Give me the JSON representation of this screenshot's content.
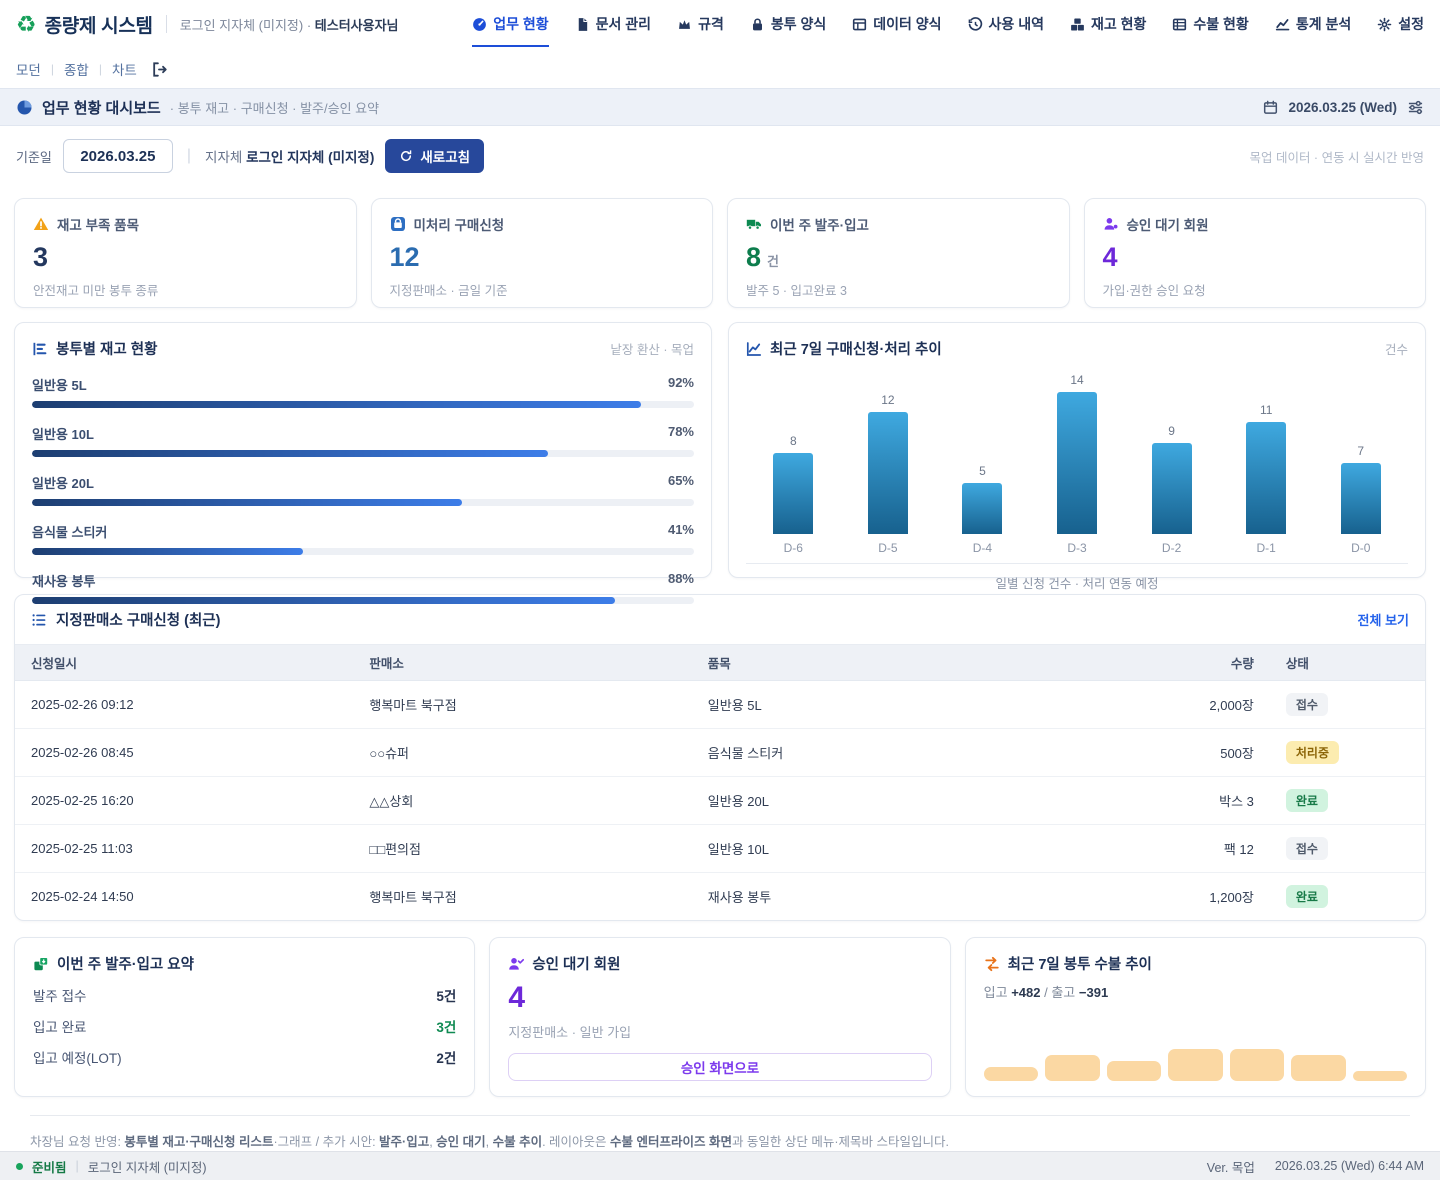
{
  "app": {
    "logo_glyph": "♻",
    "title": "종량제 시스템",
    "login_context": "로그인 지자체 (미지정)",
    "login_sep": " · ",
    "user_name": "테스터사용자님",
    "nav": [
      {
        "icon": "gauge-icon",
        "label": "업무 현황",
        "active": true
      },
      {
        "icon": "document-icon",
        "label": "문서 관리",
        "active": false
      },
      {
        "icon": "spec-crown-icon",
        "label": "규격",
        "active": false
      },
      {
        "icon": "bag-lock-icon",
        "label": "봉투 양식",
        "active": false
      },
      {
        "icon": "data-table-icon",
        "label": "데이터 양식",
        "active": false
      },
      {
        "icon": "history-icon",
        "label": "사용 내역",
        "active": false
      },
      {
        "icon": "inventory-boxes-icon",
        "label": "재고 현황",
        "active": false
      },
      {
        "icon": "ledger-icon",
        "label": "수불 현황",
        "active": false
      },
      {
        "icon": "stats-icon",
        "label": "통계 분석",
        "active": false
      },
      {
        "icon": "gear-icon",
        "label": "설정",
        "active": false
      }
    ],
    "subnav": {
      "links": [
        "모던",
        "종합",
        "차트"
      ],
      "exit_icon": "logout-icon"
    }
  },
  "titlebar": {
    "title": "업무 현황 대시보드",
    "subtitle": "· 봉투 재고 · 구매신청 · 발주/승인 요약",
    "date": "2026.03.25 (Wed)"
  },
  "filter": {
    "date_label": "기준일",
    "date_value": "2026.03.25",
    "divider": "|",
    "org_label": "지자체",
    "org_value": "로그인 지자체 (미지정)",
    "refresh_label": "새로고침",
    "note": "목업 데이터 · 연동 시 실시간 반영"
  },
  "kpis": [
    {
      "icon": "warning-icon",
      "label": "재고 부족 품목",
      "value": "3",
      "unit": "",
      "sub": "안전재고 미만 봉투 종류",
      "value_color": "#24385f"
    },
    {
      "icon": "purchase-bag-icon",
      "label": "미처리 구매신청",
      "value": "12",
      "unit": "",
      "sub": "지정판매소 · 금일 기준",
      "value_color": "#2b6cb0"
    },
    {
      "icon": "truck-icon",
      "label": "이번 주 발주·입고",
      "value": "8",
      "unit": "건",
      "sub": "발주 5 · 입고완료 3",
      "value_color": "#0d7d4d"
    },
    {
      "icon": "user-icon",
      "label": "승인 대기 회원",
      "value": "4",
      "unit": "",
      "sub": "가입·권한 승인 요청",
      "value_color": "#6d28d9"
    }
  ],
  "chart_data": [
    {
      "type": "bar",
      "orientation": "horizontal",
      "title": "봉투별 재고 현황",
      "note": "낱장 환산 · 목업",
      "categories": [
        "일반용 5L",
        "일반용 10L",
        "일반용 20L",
        "음식물 스티커",
        "재사용 봉투"
      ],
      "values": [
        92,
        78,
        65,
        41,
        88
      ],
      "unit": "%",
      "xlim": [
        0,
        100
      ],
      "bar_gradient": [
        "#1d3e71",
        "#3d7de8"
      ]
    },
    {
      "type": "bar",
      "title": "최근 7일 구매신청·처리 추이",
      "unit_label": "건수",
      "categories": [
        "D-6",
        "D-5",
        "D-4",
        "D-3",
        "D-2",
        "D-1",
        "D-0"
      ],
      "values": [
        8,
        12,
        5,
        14,
        9,
        11,
        7
      ],
      "ylim": [
        0,
        14
      ],
      "caption": "일별 신청 건수 · 처리 연동 예정",
      "bar_gradient": [
        "#3fa9e0",
        "#17618e"
      ]
    },
    {
      "type": "bar",
      "title": "최근 7일 봉투 수불 추이",
      "in_label": "입고",
      "in_value": "+482",
      "flow_sep": " / ",
      "out_label": "출고",
      "out_value": "−391",
      "values_relative": [
        14,
        26,
        20,
        32,
        32,
        26,
        10
      ],
      "bar_color": "#fbd8a3"
    }
  ],
  "table": {
    "title": "지정판매소 구매신청 (최근)",
    "link": "전체 보기",
    "columns": [
      "신청일시",
      "판매소",
      "품목",
      "수량",
      "상태"
    ],
    "rows": [
      {
        "date": "2025-02-26 09:12",
        "store": "행복마트 북구점",
        "item": "일반용 5L",
        "qty": "2,000장",
        "status": "접수",
        "status_type": "gray"
      },
      {
        "date": "2025-02-26 08:45",
        "store": "○○슈퍼",
        "item": "음식물 스티커",
        "qty": "500장",
        "status": "처리중",
        "status_type": "yellow"
      },
      {
        "date": "2025-02-25 16:20",
        "store": "△△상회",
        "item": "일반용 20L",
        "qty": "박스 3",
        "status": "완료",
        "status_type": "green"
      },
      {
        "date": "2025-02-25 11:03",
        "store": "□□편의점",
        "item": "일반용 10L",
        "qty": "팩 12",
        "status": "접수",
        "status_type": "gray"
      },
      {
        "date": "2025-02-24 14:50",
        "store": "행복마트 북구점",
        "item": "재사용 봉투",
        "qty": "1,200장",
        "status": "완료",
        "status_type": "green"
      }
    ]
  },
  "bottom": {
    "orders": {
      "title": "이번 주 발주·입고 요약",
      "rows": [
        {
          "label": "발주 접수",
          "value": "5건",
          "highlight": false
        },
        {
          "label": "입고 완료",
          "value": "3건",
          "highlight": true
        },
        {
          "label": "입고 예정(LOT)",
          "value": "2건",
          "highlight": false
        }
      ]
    },
    "approval": {
      "title": "승인 대기 회원",
      "value": "4",
      "sub": "지정판매소 · 일반 가입",
      "button_label": "승인 화면으로"
    }
  },
  "footer_note": {
    "segments": [
      {
        "text": "차장님 요청 반영: ",
        "bold": false
      },
      {
        "text": "봉투별 재고·구매신청 리스트",
        "bold": true
      },
      {
        "text": "·그래프 / 추가 시안: ",
        "bold": false
      },
      {
        "text": "발주·입고",
        "bold": true
      },
      {
        "text": ", ",
        "bold": false
      },
      {
        "text": "승인 대기",
        "bold": true
      },
      {
        "text": ", ",
        "bold": false
      },
      {
        "text": "수불 추이",
        "bold": true
      },
      {
        "text": ". 레이아웃은 ",
        "bold": false
      },
      {
        "text": "수불 엔터프라이즈 화면",
        "bold": true
      },
      {
        "text": "과 동일한 상단 메뉴·제목바 스타일입니다.",
        "bold": false
      }
    ]
  },
  "statusbar": {
    "status": "준비됨",
    "divider": "|",
    "context": "로그인 지자체 (미지정)",
    "version": "Ver. 목업",
    "datetime": "2026.03.25 (Wed) 6:44 AM"
  }
}
